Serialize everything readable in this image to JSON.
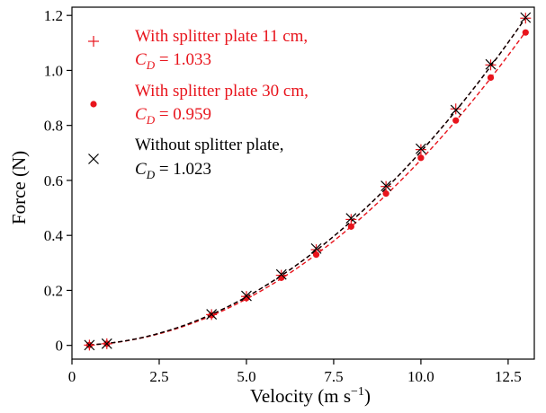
{
  "chart_data": {
    "type": "scatter",
    "xlabel": "Velocity (m s",
    "xlabel_sup": "−1",
    "xlabel_tail": ")",
    "ylabel": "Force (N)",
    "xlim": [
      0,
      13.25
    ],
    "ylim": [
      -0.05,
      1.23
    ],
    "grid": false,
    "legend_position": "top-left",
    "xticks": [
      0,
      2.5,
      5.0,
      7.5,
      10.0,
      12.5
    ],
    "xtick_labels": [
      "0",
      "2.5",
      "5.0",
      "7.5",
      "10.0",
      "12.5"
    ],
    "yticks": [
      0,
      0.2,
      0.4,
      0.6,
      0.8,
      1.0,
      1.2
    ],
    "ytick_labels": [
      "0",
      "0.2",
      "0.4",
      "0.6",
      "0.8",
      "1.0",
      "1.2"
    ],
    "x": [
      0.5,
      1.0,
      4.0,
      5.0,
      6.0,
      7.0,
      8.0,
      9.0,
      10.0,
      11.0,
      12.0,
      13.0
    ],
    "series": [
      {
        "name": "With splitter plate 11 cm,",
        "cd_label": "= 1.033",
        "marker": "plus",
        "color": "#e8141c",
        "y": [
          0.001,
          0.006,
          0.112,
          0.178,
          0.255,
          0.348,
          0.458,
          0.578,
          0.712,
          0.86,
          1.02,
          1.19
        ],
        "fit_coeff": 0.00705
      },
      {
        "name": "With splitter plate 30 cm,",
        "cd_label": "= 0.959",
        "marker": "dot",
        "color": "#e8141c",
        "y": [
          0.001,
          0.006,
          0.11,
          0.172,
          0.246,
          0.33,
          0.432,
          0.552,
          0.682,
          0.818,
          0.974,
          1.138
        ],
        "fit_coeff": 0.00675
      },
      {
        "name": "Without splitter plate,",
        "cd_label": "= 1.023",
        "marker": "x",
        "color": "#000000",
        "y": [
          0.001,
          0.006,
          0.113,
          0.18,
          0.258,
          0.352,
          0.462,
          0.58,
          0.715,
          0.856,
          1.022,
          1.192
        ],
        "fit_coeff": 0.00705
      }
    ]
  }
}
